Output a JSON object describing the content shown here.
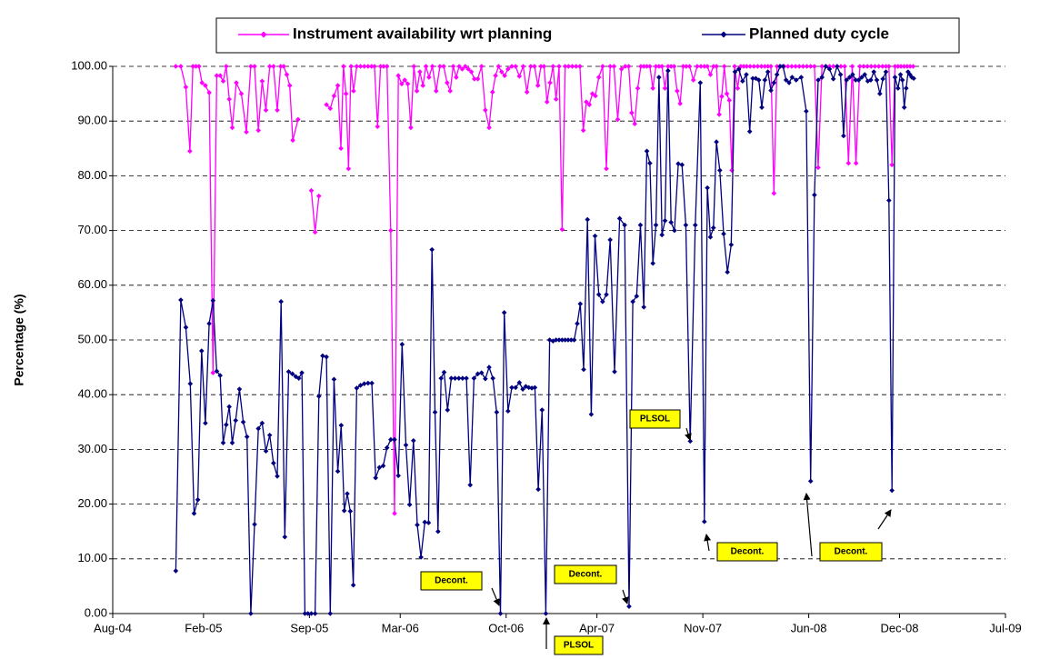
{
  "chart_data": {
    "type": "line",
    "y_label": "Percentage (%)",
    "xlim": [
      "2004-08",
      "2009-07"
    ],
    "xticks": [
      {
        "value": "2004-08",
        "label": "Aug-04"
      },
      {
        "value": "2005-02",
        "label": "Feb-05"
      },
      {
        "value": "2005-09",
        "label": "Sep-05"
      },
      {
        "value": "2006-03",
        "label": "Mar-06"
      },
      {
        "value": "2006-10",
        "label": "Oct-06"
      },
      {
        "value": "2007-04",
        "label": "Apr-07"
      },
      {
        "value": "2007-11",
        "label": "Nov-07"
      },
      {
        "value": "2008-06",
        "label": "Jun-08"
      },
      {
        "value": "2008-12",
        "label": "Dec-08"
      },
      {
        "value": "2009-07",
        "label": "Jul-09"
      }
    ],
    "ylim": [
      0,
      100
    ],
    "yticks": [
      {
        "value": 0,
        "label": "0.00"
      },
      {
        "value": 10,
        "label": "10.00"
      },
      {
        "value": 20,
        "label": "20.00"
      },
      {
        "value": 30,
        "label": "30.00"
      },
      {
        "value": 40,
        "label": "40.00"
      },
      {
        "value": 50,
        "label": "50.00"
      },
      {
        "value": 60,
        "label": "60.00"
      },
      {
        "value": 70,
        "label": "70.00"
      },
      {
        "value": 80,
        "label": "80.00"
      },
      {
        "value": 90,
        "label": "90.00"
      },
      {
        "value": 100,
        "label": "100.00"
      }
    ],
    "grid": true,
    "legend": "top",
    "annotations": [
      "Decont.",
      "PLSOL",
      "Decont.",
      "PLSOL",
      "Decont.",
      "Decont."
    ],
    "series": [
      {
        "name": "Instrument availability wrt planning",
        "color": "#ff00ff",
        "x": [
          "2004-12",
          "2004-12",
          "2004-12",
          "2005-01",
          "2005-01",
          "2005-01",
          "2005-01",
          "2005-01",
          "2005-02",
          "2005-02",
          "2005-02",
          "2005-02",
          "2005-03",
          "2005-03",
          "2005-03",
          "2005-03",
          "2005-03",
          "2005-04",
          "2005-04",
          "2005-04",
          "2005-05",
          "2005-05",
          "2005-05",
          "2005-05",
          "2005-06",
          "2005-06",
          "2005-06",
          "2005-06",
          "2005-07",
          "2005-07",
          "2005-07",
          "2005-07",
          "2005-07",
          "2005-08",
          "2005-08",
          "2005-09",
          "2005-09",
          "2005-09",
          "2005-09",
          "2005-10",
          "2005-10",
          "2005-10",
          "2005-10",
          "2005-11",
          "2005-11",
          "2005-11",
          "2005-11",
          "2005-11",
          "2005-11",
          "2005-12",
          "2005-12",
          "2005-12",
          "2005-12",
          "2006-01",
          "2006-01",
          "2006-01",
          "2006-01",
          "2006-01",
          "2006-02",
          "2006-02",
          "2006-02",
          "2006-02",
          "2006-03",
          "2006-03",
          "2006-03",
          "2006-03",
          "2006-03",
          "2006-04",
          "2006-04",
          "2006-04",
          "2006-04",
          "2006-04",
          "2006-05",
          "2006-05",
          "2006-05",
          "2006-05",
          "2006-06",
          "2006-06",
          "2006-06",
          "2006-06",
          "2006-06",
          "2006-07",
          "2006-07",
          "2006-07",
          "2006-07",
          "2006-07",
          "2006-08",
          "2006-08",
          "2006-08",
          "2006-08",
          "2006-09",
          "2006-09",
          "2006-09",
          "2006-09",
          "2006-09",
          "2006-10",
          "2006-10",
          "2006-10",
          "2006-10",
          "2006-11",
          "2006-11",
          "2006-11",
          "2006-11",
          "2006-12",
          "2006-12",
          "2006-12",
          "2006-12",
          "2006-12",
          "2007-01",
          "2007-01",
          "2007-01",
          "2007-01",
          "2007-01",
          "2007-02",
          "2007-02",
          "2007-02",
          "2007-02",
          "2007-03",
          "2007-03",
          "2007-03",
          "2007-03",
          "2007-03",
          "2007-04",
          "2007-04",
          "2007-04",
          "2007-04",
          "2007-05",
          "2007-05",
          "2007-05",
          "2007-05",
          "2007-06",
          "2007-06",
          "2007-06",
          "2007-06",
          "2007-06",
          "2007-07",
          "2007-07",
          "2007-07",
          "2007-07",
          "2007-07",
          "2007-08",
          "2007-08",
          "2007-08",
          "2007-08",
          "2007-08",
          "2007-09",
          "2007-09",
          "2007-09",
          "2007-09",
          "2007-09",
          "2007-10",
          "2007-10",
          "2007-10",
          "2007-10",
          "2007-11",
          "2007-11",
          "2007-11",
          "2007-11",
          "2007-11",
          "2007-12",
          "2007-12",
          "2007-12",
          "2007-12",
          "2007-12",
          "2007-12",
          "2008-01",
          "2008-01",
          "2008-01",
          "2008-01",
          "2008-01",
          "2008-02",
          "2008-02",
          "2008-02",
          "2008-02",
          "2008-03",
          "2008-03",
          "2008-03",
          "2008-03",
          "2008-03",
          "2008-04",
          "2008-04",
          "2008-04",
          "2008-04",
          "2008-05",
          "2008-05",
          "2008-05",
          "2008-05",
          "2008-06",
          "2008-06",
          "2008-06",
          "2008-06",
          "2008-07",
          "2008-07",
          "2008-07",
          "2008-07",
          "2008-08",
          "2008-08",
          "2008-08",
          "2008-08",
          "2008-09",
          "2008-09",
          "2008-09",
          "2008-09",
          "2008-10",
          "2008-10",
          "2008-10",
          "2008-10",
          "2008-11",
          "2008-11",
          "2008-11",
          "2008-11",
          "2008-11",
          "2008-12",
          "2008-12",
          "2008-12",
          "2008-12",
          "2008-12"
        ],
        "values": [
          100,
          100,
          96.2,
          84.5,
          100,
          100,
          100,
          97,
          96.5,
          95.2,
          44,
          98.3,
          98.3,
          97.3,
          100,
          94,
          88.8,
          97,
          95,
          88,
          100,
          100,
          88.3,
          97.3,
          92,
          100,
          100,
          92,
          100,
          100,
          98.5,
          96.5,
          86.5,
          90.3,
          null,
          77.3,
          69.7,
          76.3,
          null,
          93,
          92.3,
          94.6,
          96.5,
          85,
          100,
          95,
          81.3,
          100,
          95.5,
          100,
          100,
          100,
          100,
          100,
          100,
          89,
          100,
          100,
          100,
          70,
          18.3,
          98.3,
          96.8,
          97.5,
          96.8,
          88.8,
          100,
          95.5,
          99,
          96.5,
          100,
          98,
          100,
          95.5,
          100,
          100,
          97,
          95.5,
          100,
          98,
          100,
          99.5,
          100,
          99.5,
          99,
          97.7,
          97.7,
          100,
          92,
          88.8,
          95.3,
          98.3,
          100,
          99,
          98.3,
          99.5,
          100,
          100,
          98.2,
          100,
          95.3,
          100,
          100,
          96.5,
          100,
          100,
          93.5,
          97,
          100,
          94,
          100,
          70.2,
          100,
          100,
          100,
          100,
          100,
          88.3,
          93.5,
          93,
          95,
          94.6,
          98,
          100,
          81.3,
          100,
          100,
          90.3,
          99.5,
          100,
          100,
          91.5,
          89.5,
          96,
          100,
          100,
          100,
          100,
          96,
          100,
          100,
          100,
          96,
          100,
          100,
          100,
          95.5,
          93.2,
          100,
          100,
          100,
          97.5,
          100,
          100,
          100,
          100,
          98.5,
          100,
          100,
          91.2,
          94.5,
          100,
          95,
          93.8,
          81,
          100,
          96,
          100,
          100,
          100,
          100,
          100,
          100,
          100,
          100,
          100,
          100,
          76.8,
          100,
          100,
          100,
          100,
          100,
          100,
          100,
          100,
          100,
          100,
          100,
          81.5,
          100,
          100,
          100,
          100,
          100,
          100,
          100,
          82.3,
          100,
          82.3,
          100,
          100,
          100,
          100,
          100,
          100,
          100,
          100,
          100,
          82,
          100,
          100,
          100,
          100,
          100,
          100,
          100
        ]
      },
      {
        "name": "Planned duty cycle",
        "color": "#000080",
        "x": [
          "2004-12",
          "2004-12",
          "2004-12",
          "2005-01",
          "2005-01",
          "2005-01",
          "2005-01",
          "2005-02",
          "2005-02",
          "2005-02",
          "2005-02",
          "2005-03",
          "2005-03",
          "2005-03",
          "2005-03",
          "2005-03",
          "2005-04",
          "2005-04",
          "2005-04",
          "2005-04",
          "2005-05",
          "2005-05",
          "2005-05",
          "2005-05",
          "2005-06",
          "2005-06",
          "2005-06",
          "2005-06",
          "2005-07",
          "2005-07",
          "2005-07",
          "2005-07",
          "2005-08",
          "2005-08",
          "2005-08",
          "2005-08",
          "2005-08",
          "2005-09",
          "2005-09",
          "2005-09",
          "2005-09",
          "2005-10",
          "2005-10",
          "2005-10",
          "2005-10",
          "2005-11",
          "2005-11",
          "2005-11",
          "2005-11",
          "2005-11",
          "2005-12",
          "2005-12",
          "2005-12",
          "2005-12",
          "2006-01",
          "2006-01",
          "2006-01",
          "2006-01",
          "2006-02",
          "2006-02",
          "2006-02",
          "2006-02",
          "2006-03",
          "2006-03",
          "2006-03",
          "2006-03",
          "2006-04",
          "2006-04",
          "2006-04",
          "2006-04",
          "2006-05",
          "2006-05",
          "2006-05",
          "2006-05",
          "2006-05",
          "2006-06",
          "2006-06",
          "2006-06",
          "2006-06",
          "2006-07",
          "2006-07",
          "2006-07",
          "2006-07",
          "2006-08",
          "2006-08",
          "2006-08",
          "2006-08",
          "2006-09",
          "2006-09",
          "2006-09",
          "2006-09",
          "2006-10",
          "2006-10",
          "2006-10",
          "2006-10",
          "2006-11",
          "2006-11",
          "2006-11",
          "2006-11",
          "2006-11",
          "2006-12",
          "2006-12",
          "2006-12",
          "2006-12",
          "2007-01",
          "2007-01",
          "2007-01",
          "2007-01",
          "2007-01",
          "2007-02",
          "2007-02",
          "2007-02",
          "2007-02",
          "2007-02",
          "2007-03",
          "2007-03",
          "2007-03",
          "2007-03",
          "2007-04",
          "2007-04",
          "2007-04",
          "2007-04",
          "2007-05",
          "2007-05",
          "2007-05",
          "2007-06",
          "2007-06",
          "2007-06",
          "2007-06",
          "2007-07",
          "2007-07",
          "2007-07",
          "2007-07",
          "2007-07",
          "2007-08",
          "2007-08",
          "2007-08",
          "2007-08",
          "2007-08",
          "2007-09",
          "2007-09",
          "2007-09",
          "2007-09",
          "2007-10",
          "2007-10",
          "2007-10",
          "2007-11",
          "2007-11",
          "2007-11",
          "2007-11",
          "2007-11",
          "2007-12",
          "2007-12",
          "2007-12",
          "2007-12",
          "2008-01",
          "2008-01",
          "2008-01",
          "2008-01",
          "2008-02",
          "2008-02",
          "2008-02",
          "2008-02",
          "2008-02",
          "2008-03",
          "2008-03",
          "2008-03",
          "2008-03",
          "2008-03",
          "2008-04",
          "2008-04",
          "2008-04",
          "2008-04",
          "2008-04",
          "2008-05",
          "2008-05",
          "2008-05",
          "2008-06",
          "2008-06",
          "2008-06",
          "2008-06",
          "2008-07",
          "2008-07",
          "2008-07",
          "2008-07",
          "2008-08",
          "2008-08",
          "2008-08",
          "2008-08",
          "2008-08",
          "2008-09",
          "2008-09",
          "2008-09",
          "2008-09",
          "2008-09",
          "2008-10",
          "2008-10",
          "2008-10",
          "2008-10",
          "2008-10",
          "2008-11",
          "2008-11",
          "2008-11",
          "2008-11",
          "2008-11",
          "2008-12",
          "2008-12",
          "2008-12",
          "2008-12",
          "2008-12",
          "2008-12",
          "2008-12",
          "2008-12"
        ],
        "values": [
          7.8,
          57.3,
          52.3,
          42,
          18.3,
          20.8,
          48,
          34.8,
          53,
          57.2,
          44.3,
          43.5,
          31.2,
          34.5,
          37.8,
          31.2,
          35.3,
          41,
          35,
          32.3,
          0,
          16.3,
          33.8,
          34.8,
          29.7,
          32.6,
          27.5,
          25.1,
          57,
          14,
          44.2,
          43.8,
          43.3,
          43,
          44,
          0,
          0,
          0,
          0,
          39.7,
          47.1,
          46.9,
          0,
          42.8,
          26,
          34.4,
          18.8,
          21.9,
          18.7,
          5.2,
          41.2,
          41.7,
          42,
          42.1,
          42.1,
          24.8,
          26.7,
          27,
          30.3,
          31.8,
          31.8,
          25.2,
          49.2,
          30.8,
          19.9,
          31.6,
          16.2,
          10.3,
          16.7,
          16.6,
          66.5,
          36.8,
          15,
          43,
          44.1,
          37.2,
          43,
          43,
          43,
          43,
          43,
          23.5,
          43,
          43.8,
          44,
          42.9,
          45,
          43,
          36.8,
          0,
          55,
          37,
          41.3,
          41.3,
          42.2,
          41,
          41.5,
          41.3,
          41.2,
          41.3,
          22.7,
          37.2,
          0,
          50,
          49.8,
          50,
          50,
          50,
          50,
          50,
          50,
          50,
          53,
          56.6,
          44.6,
          72,
          36.4,
          69,
          58.3,
          57,
          58.3,
          68.3,
          44.2,
          72.2,
          71,
          1.3,
          57,
          58,
          71,
          56,
          84.5,
          82.3,
          64,
          71,
          98,
          69.2,
          71.8,
          99.2,
          71.5,
          70,
          82.2,
          82,
          71,
          31.5,
          71,
          97,
          16.8,
          77.8,
          68.8,
          70.5,
          86.2,
          81,
          69.4,
          62.4,
          67.4,
          99,
          99.5,
          97.3,
          98.5,
          88.1,
          97.8,
          97.8,
          97.5,
          92.5,
          97.5,
          99,
          95.6,
          97,
          98.5,
          100,
          100,
          97.5,
          97,
          98,
          97.5,
          98,
          91.8,
          24.2,
          76.5,
          97.5,
          98,
          100,
          99.5,
          97.7,
          100,
          98.5,
          87.3,
          97.5,
          98,
          98.5,
          97.5,
          97.5,
          98,
          98.5,
          97.3,
          97.5,
          99,
          97.5,
          95,
          97.7,
          99,
          75.5,
          22.5,
          98,
          96,
          98.5,
          97.5,
          92.5,
          96,
          99,
          98.5,
          98,
          97.8
        ]
      }
    ]
  }
}
